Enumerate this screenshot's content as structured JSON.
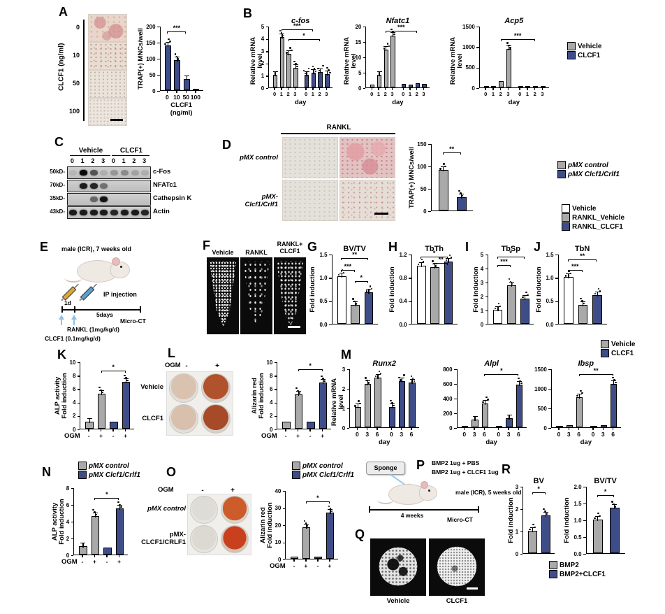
{
  "colors": {
    "blue": "#3e4c87",
    "gray": "#a9a9a9",
    "white": "#ffffff"
  },
  "panels": {
    "A": {
      "letter": "A",
      "axis_label": "CLCF1 (ng/ml)",
      "doses": [
        "0",
        "10",
        "50",
        "100"
      ]
    },
    "B": {
      "letter": "B"
    },
    "C": {
      "letter": "C",
      "groups": [
        "Vehicle",
        "CLCF1"
      ],
      "lanes": [
        "0",
        "1",
        "2",
        "3",
        "0",
        "1",
        "2",
        "3"
      ],
      "rows": [
        {
          "mw": "50kD-",
          "protein": "c-Fos",
          "bands": [
            0.08,
            1.0,
            0.6,
            0.12,
            0.25,
            0.3,
            0.18,
            0.12
          ]
        },
        {
          "mw": "70kD-",
          "protein": "NFATc1",
          "bands": [
            0,
            0.9,
            0.85,
            0.45,
            0,
            0,
            0,
            0
          ]
        },
        {
          "mw": "35kD-",
          "protein": "Cathepsin K",
          "bands": [
            0,
            0,
            0.5,
            0.95,
            0,
            0,
            0,
            0
          ]
        },
        {
          "mw": "43kD-",
          "protein": "Actin",
          "bands": [
            0.9,
            0.9,
            0.9,
            0.9,
            0.85,
            0.9,
            0.9,
            0.85
          ]
        }
      ]
    },
    "D": {
      "letter": "D",
      "top_label": "RANKL",
      "row1": "pMX control",
      "row2": "pMX-\nClcf1/Crlf1"
    },
    "E": {
      "letter": "E",
      "subject": "male (ICR), 7 weeks old",
      "injection": "IP injection",
      "day1": "1d",
      "duration": "5days",
      "endpoint": "Micro-CT",
      "arrow_rankl": "RANKL (1mg/kg/d)",
      "arrow_clcf1": "CLCF1 (0.1mg/kg/d)"
    },
    "F": {
      "letter": "F",
      "labels": [
        "Vehicle",
        "RANKL",
        "RANKL+\nCLCF1"
      ]
    },
    "G": {
      "letter": "G"
    },
    "H": {
      "letter": "H"
    },
    "I": {
      "letter": "I"
    },
    "J": {
      "letter": "J"
    },
    "K": {
      "letter": "K"
    },
    "L": {
      "letter": "L",
      "col_header": "OGM",
      "cols": [
        "-",
        "+"
      ],
      "rows": [
        "Vehicle",
        "CLCF1"
      ]
    },
    "M": {
      "letter": "M"
    },
    "N": {
      "letter": "N"
    },
    "O": {
      "letter": "O",
      "col_header": "OGM",
      "cols": [
        "-",
        "+"
      ],
      "row1": "pMX control",
      "row2": "pMX-\nCLCF1/CRLF1"
    },
    "P": {
      "letter": "P",
      "sponge": "Sponge",
      "line1": "BMP2 1ug + PBS",
      "line2": "BMP2 1ug + CLCF1 1ug",
      "subject": "male (ICR), 5 weeks old",
      "duration": "4 weeks",
      "endpoint": "Micro-CT"
    },
    "Q": {
      "letter": "Q",
      "labels": [
        "Vehicle",
        "CLCF1"
      ]
    },
    "R": {
      "letter": "R"
    }
  },
  "legends": {
    "b": [
      {
        "c": "gray",
        "label": "Vehicle"
      },
      {
        "c": "blue",
        "label": "CLCF1"
      }
    ],
    "d": [
      {
        "c": "gray",
        "label": "pMX control",
        "it": true
      },
      {
        "c": "blue",
        "label": "pMX Clcf1/Crlf1",
        "it": true
      }
    ],
    "gj": [
      {
        "c": "white",
        "label": "Vehicle"
      },
      {
        "c": "gray",
        "label": "RANKL_Vehicle"
      },
      {
        "c": "blue",
        "label": "RANKL_CLCF1"
      }
    ],
    "m": [
      {
        "c": "gray",
        "label": "Vehicle"
      },
      {
        "c": "blue",
        "label": "CLCF1"
      }
    ],
    "n": [
      {
        "c": "gray",
        "label": "pMX control",
        "it": true
      },
      {
        "c": "blue",
        "label": "pMX Clcf1/Crlf1",
        "it": true
      }
    ],
    "o": [
      {
        "c": "gray",
        "label": "pMX control",
        "it": true
      },
      {
        "c": "blue",
        "label": "pMX Clcf1/Crlf1",
        "it": true
      }
    ],
    "r": [
      {
        "c": "gray",
        "label": "BMP2"
      },
      {
        "c": "blue",
        "label": "BMP2+CLCF1"
      }
    ]
  },
  "charts": {
    "trapA": {
      "type": "bar",
      "ylabel": "TRAP(+) MNCs/well",
      "ylim": 200,
      "yticks": [
        "0",
        "50",
        "100",
        "150",
        "200"
      ],
      "bars": [
        {
          "v": 140,
          "c": "blue"
        },
        {
          "v": 93,
          "c": "blue"
        },
        {
          "v": 35,
          "c": "blue"
        },
        {
          "v": 3,
          "c": "blue"
        }
      ],
      "xticks": [
        "0",
        "10",
        "50",
        "100"
      ],
      "xlabel": "CLCF1 (ng/ml)",
      "sig": [
        {
          "a": 0,
          "b": 2,
          "l": "***",
          "h": 0.92
        }
      ]
    },
    "cfos": {
      "type": "bar",
      "title": "c-fos",
      "italic": true,
      "ylabel": "Relative mRNA level",
      "ylim": 5,
      "yticks": [
        "0",
        "1",
        "2",
        "3",
        "4",
        "5"
      ],
      "split": 4,
      "bars": [
        {
          "v": 1,
          "c": "gray"
        },
        {
          "v": 4.1,
          "c": "gray"
        },
        {
          "v": 2.7,
          "c": "gray"
        },
        {
          "v": 1.6,
          "c": "gray"
        },
        {
          "v": 1.05,
          "c": "blue"
        },
        {
          "v": 1.2,
          "c": "blue"
        },
        {
          "v": 1.25,
          "c": "blue"
        },
        {
          "v": 1.1,
          "c": "blue"
        }
      ],
      "xticks": [
        "0",
        "1",
        "2",
        "3",
        "0",
        "1",
        "2",
        "3"
      ],
      "xlabel": "day",
      "sig": [
        {
          "a": 1,
          "b": 5,
          "l": "***",
          "h": 0.95
        },
        {
          "a": 2,
          "b": 6,
          "l": "*",
          "h": 0.8
        }
      ]
    },
    "nfatc1": {
      "type": "bar",
      "title": "Nfatc1",
      "italic": true,
      "ylabel": "Relative mRNA level",
      "ylim": 20,
      "yticks": [
        "0",
        "5",
        "10",
        "15",
        "20"
      ],
      "split": 4,
      "bars": [
        {
          "v": 1,
          "c": "gray"
        },
        {
          "v": 4,
          "c": "gray"
        },
        {
          "v": 12.2,
          "c": "gray"
        },
        {
          "v": 16.8,
          "c": "gray"
        },
        {
          "v": 1.1,
          "c": "blue"
        },
        {
          "v": 1.0,
          "c": "blue"
        },
        {
          "v": 1.4,
          "c": "blue"
        },
        {
          "v": 1.1,
          "c": "blue"
        }
      ],
      "xticks": [
        "0",
        "1",
        "2",
        "3",
        "0",
        "1",
        "2",
        "3"
      ],
      "xlabel": "day",
      "sig": [
        {
          "a": 2,
          "b": 6,
          "l": "***",
          "h": 0.93
        }
      ]
    },
    "acp5": {
      "type": "bar",
      "title": "Acp5",
      "italic": true,
      "ylabel": "Relative mRNA level",
      "ylim": 1500,
      "yticks": [
        "0",
        "500",
        "1000",
        "1500"
      ],
      "split": 4,
      "bars": [
        {
          "v": 8,
          "c": "gray"
        },
        {
          "v": 15,
          "c": "gray"
        },
        {
          "v": 160,
          "c": "gray"
        },
        {
          "v": 930,
          "c": "gray"
        },
        {
          "v": 8,
          "c": "blue"
        },
        {
          "v": 8,
          "c": "blue"
        },
        {
          "v": 8,
          "c": "blue"
        },
        {
          "v": 8,
          "c": "blue"
        }
      ],
      "xticks": [
        "0",
        "1",
        "2",
        "3",
        "0",
        "1",
        "2",
        "3"
      ],
      "xlabel": "day",
      "sig": [
        {
          "a": 2,
          "b": 6,
          "l": "***",
          "h": 0.8
        }
      ]
    },
    "trapD": {
      "type": "bar",
      "ylabel": "TRAP(+) MNCs/well",
      "ylim": 150,
      "yticks": [
        "0",
        "50",
        "100",
        "150"
      ],
      "bars": [
        {
          "v": 90,
          "c": "gray"
        },
        {
          "v": 30,
          "c": "blue"
        }
      ],
      "xticks": [
        "",
        ""
      ],
      "sig": [
        {
          "a": 0,
          "b": 1,
          "l": "**",
          "h": 0.88
        }
      ]
    },
    "bvtv": {
      "type": "bar",
      "title": "BV/TV",
      "ylabel": "Fold induction",
      "ylim": 1.5,
      "yticks": [
        "0.0",
        "0.5",
        "1.0",
        "1.5"
      ],
      "bars": [
        {
          "v": 1.02,
          "c": "white"
        },
        {
          "v": 0.4,
          "c": "gray"
        },
        {
          "v": 0.67,
          "c": "blue"
        }
      ],
      "xticks": [
        "",
        "",
        ""
      ],
      "sig": [
        {
          "a": 0,
          "b": 1,
          "l": "***",
          "h": 0.78
        },
        {
          "a": 0,
          "b": 2,
          "l": "**",
          "h": 0.95
        },
        {
          "a": 1,
          "b": 2,
          "l": "*",
          "h": 0.62
        }
      ]
    },
    "tbth": {
      "type": "bar",
      "title": "TbTh",
      "ylabel": "Fold induction",
      "ylim": 1.2,
      "yticks": [
        "0.0",
        "0.4",
        "0.8",
        "1.2"
      ],
      "bars": [
        {
          "v": 1.0,
          "c": "white"
        },
        {
          "v": 0.97,
          "c": "gray"
        },
        {
          "v": 1.07,
          "c": "blue"
        }
      ],
      "xticks": [
        "",
        "",
        ""
      ],
      "sig": [
        {
          "a": 0,
          "b": 2,
          "l": "*",
          "h": 0.97
        },
        {
          "a": 1,
          "b": 2,
          "l": "**",
          "h": 0.88
        }
      ]
    },
    "tbsp": {
      "type": "bar",
      "title": "TbSp",
      "ylabel": "Fold induction",
      "ylim": 5,
      "yticks": [
        "0",
        "1",
        "2",
        "3",
        "4",
        "5"
      ],
      "bars": [
        {
          "v": 1.0,
          "c": "white"
        },
        {
          "v": 2.75,
          "c": "gray"
        },
        {
          "v": 1.8,
          "c": "blue"
        }
      ],
      "xticks": [
        "",
        "",
        ""
      ],
      "sig": [
        {
          "a": 0,
          "b": 1,
          "l": "***",
          "h": 0.85
        },
        {
          "a": 0,
          "b": 2,
          "l": "*",
          "h": 0.97
        }
      ]
    },
    "tbn": {
      "type": "bar",
      "title": "TbN",
      "ylabel": "Fold induction",
      "ylim": 1.5,
      "yticks": [
        "0.0",
        "0.5",
        "1.0",
        "1.5"
      ],
      "bars": [
        {
          "v": 1.0,
          "c": "white"
        },
        {
          "v": 0.41,
          "c": "gray"
        },
        {
          "v": 0.62,
          "c": "blue"
        }
      ],
      "xticks": [
        "",
        "",
        ""
      ],
      "sig": [
        {
          "a": 0,
          "b": 1,
          "l": "***",
          "h": 0.78
        },
        {
          "a": 0,
          "b": 2,
          "l": "**",
          "h": 0.93
        }
      ]
    },
    "alpK": {
      "type": "bar",
      "ylabel": "ALP activity\nFold induction",
      "ylim": 10,
      "yticks": [
        "0",
        "2",
        "4",
        "6",
        "8",
        "10"
      ],
      "bars": [
        {
          "v": 1.05,
          "c": "gray"
        },
        {
          "v": 5.2,
          "c": "gray"
        },
        {
          "v": 1.0,
          "c": "blue"
        },
        {
          "v": 7.0,
          "c": "blue"
        }
      ],
      "xticks": [
        "-",
        "+",
        "-",
        "+"
      ],
      "xleft": "OGM",
      "sig": [
        {
          "a": 1,
          "b": 3,
          "l": "*",
          "h": 0.87
        }
      ]
    },
    "alizL": {
      "type": "bar",
      "ylabel": "Alizarin red\nFold induction",
      "ylim": 10,
      "yticks": [
        "0",
        "2",
        "4",
        "6",
        "8",
        "10"
      ],
      "bars": [
        {
          "v": 1.0,
          "c": "gray"
        },
        {
          "v": 5.1,
          "c": "gray"
        },
        {
          "v": 1.0,
          "c": "blue"
        },
        {
          "v": 6.9,
          "c": "blue"
        }
      ],
      "xticks": [
        "-",
        "+",
        "-",
        "+"
      ],
      "xleft": "OGM",
      "sig": [
        {
          "a": 1,
          "b": 3,
          "l": "*",
          "h": 0.9
        }
      ]
    },
    "runx2": {
      "type": "bar",
      "title": "Runx2",
      "italic": true,
      "ylabel": "Relative mRNA level",
      "ylim": 3,
      "yticks": [
        "0",
        "1",
        "2",
        "3"
      ],
      "split": 3,
      "bars": [
        {
          "v": 1.02,
          "c": "gray"
        },
        {
          "v": 2.2,
          "c": "gray"
        },
        {
          "v": 2.55,
          "c": "gray"
        },
        {
          "v": 1.05,
          "c": "blue"
        },
        {
          "v": 2.35,
          "c": "blue"
        },
        {
          "v": 2.3,
          "c": "blue"
        }
      ],
      "xticks": [
        "0",
        "3",
        "6",
        "0",
        "3",
        "6"
      ],
      "xlabel": "day"
    },
    "alpl": {
      "type": "bar",
      "title": "Alpl",
      "italic": true,
      "ylim": 800,
      "yticks": [
        "0",
        "200",
        "400",
        "600",
        "800"
      ],
      "split": 3,
      "bars": [
        {
          "v": 8,
          "c": "gray"
        },
        {
          "v": 105,
          "c": "gray"
        },
        {
          "v": 325,
          "c": "gray"
        },
        {
          "v": 8,
          "c": "blue"
        },
        {
          "v": 125,
          "c": "blue"
        },
        {
          "v": 580,
          "c": "blue"
        }
      ],
      "xticks": [
        "0",
        "3",
        "6",
        "0",
        "3",
        "6"
      ],
      "xlabel": "day",
      "sig": [
        {
          "a": 2,
          "b": 5,
          "l": "*",
          "h": 0.92
        }
      ]
    },
    "ibsp": {
      "type": "bar",
      "title": "Ibsp",
      "italic": true,
      "ylim": 1500,
      "yticks": [
        "0",
        "500",
        "1000",
        "1500"
      ],
      "split": 3,
      "bars": [
        {
          "v": 15,
          "c": "gray"
        },
        {
          "v": 50,
          "c": "gray"
        },
        {
          "v": 775,
          "c": "gray"
        },
        {
          "v": 15,
          "c": "blue"
        },
        {
          "v": 60,
          "c": "blue"
        },
        {
          "v": 1110,
          "c": "blue"
        }
      ],
      "xticks": [
        "0",
        "3",
        "6",
        "0",
        "3",
        "6"
      ],
      "xlabel": "day",
      "sig": [
        {
          "a": 2,
          "b": 5,
          "l": "**",
          "h": 0.92
        }
      ]
    },
    "alpN": {
      "type": "bar",
      "ylabel": "ALP activity\nFold induction",
      "ylim": 8,
      "yticks": [
        "0",
        "2",
        "4",
        "6",
        "8"
      ],
      "bars": [
        {
          "v": 1.0,
          "c": "gray"
        },
        {
          "v": 4.6,
          "c": "gray"
        },
        {
          "v": 0.8,
          "c": "blue"
        },
        {
          "v": 5.5,
          "c": "blue"
        }
      ],
      "xticks": [
        "-",
        "+",
        "-",
        "+"
      ],
      "xleft": "OGM",
      "sig": [
        {
          "a": 1,
          "b": 3,
          "l": "*",
          "h": 0.85
        }
      ]
    },
    "alizO": {
      "type": "bar",
      "ylabel": "Alizarin red\nFold induction",
      "ylim": 40,
      "yticks": [
        "0",
        "10",
        "20",
        "30",
        "40"
      ],
      "bars": [
        {
          "v": 1.2,
          "c": "gray"
        },
        {
          "v": 18.5,
          "c": "gray"
        },
        {
          "v": 1.2,
          "c": "blue"
        },
        {
          "v": 27,
          "c": "blue"
        }
      ],
      "xticks": [
        "-",
        "+",
        "-",
        "+"
      ],
      "xleft": "OGM",
      "sig": [
        {
          "a": 1,
          "b": 3,
          "l": "*",
          "h": 0.85
        }
      ]
    },
    "bvR": {
      "type": "bar",
      "title": "BV",
      "ylabel": "Fold induction",
      "ylim": 3,
      "yticks": [
        "0",
        "1",
        "2",
        "3"
      ],
      "bars": [
        {
          "v": 1.0,
          "c": "gray"
        },
        {
          "v": 1.7,
          "c": "blue"
        }
      ],
      "xticks": [
        "",
        ""
      ],
      "sig": [
        {
          "a": 0,
          "b": 1,
          "l": "*",
          "h": 0.92
        }
      ]
    },
    "bvtvR": {
      "type": "bar",
      "title": "BV/TV",
      "ylabel": "Fold induction",
      "ylim": 2,
      "yticks": [
        "0.0",
        "0.5",
        "1.0",
        "1.5",
        "2.0"
      ],
      "bars": [
        {
          "v": 1.0,
          "c": "gray"
        },
        {
          "v": 1.35,
          "c": "blue"
        }
      ],
      "xticks": [
        "",
        ""
      ],
      "sig": [
        {
          "a": 0,
          "b": 1,
          "l": "*",
          "h": 0.88
        }
      ]
    }
  }
}
